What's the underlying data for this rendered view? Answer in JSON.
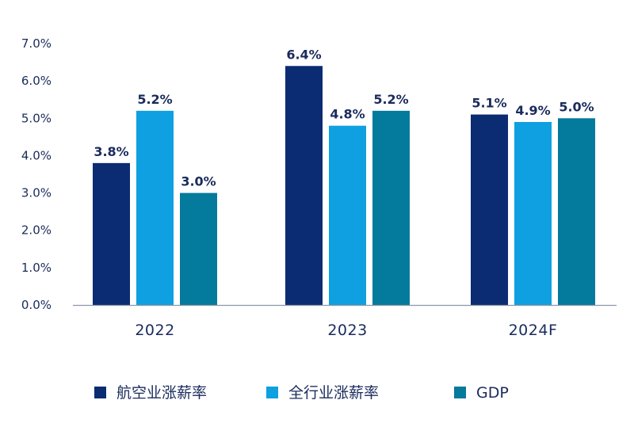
{
  "chart_data": {
    "type": "bar",
    "categories": [
      "2022",
      "2023",
      "2024F"
    ],
    "series": [
      {
        "name": "航空业涨薪率",
        "values": [
          3.8,
          6.4,
          5.1
        ],
        "labels": [
          "3.8%",
          "6.4%",
          "5.1%"
        ],
        "color": "#0b2b73"
      },
      {
        "name": "全行业涨薪率",
        "values": [
          5.2,
          4.8,
          4.9
        ],
        "labels": [
          "5.2%",
          "4.8%",
          "4.9%"
        ],
        "color": "#0ea0e0"
      },
      {
        "name": "GDP",
        "values": [
          3.0,
          5.2,
          5.0
        ],
        "labels": [
          "3.0%",
          "5.2%",
          "5.0%"
        ],
        "color": "#047a9c"
      }
    ],
    "y_ticks": [
      "0.0%",
      "1.0%",
      "2.0%",
      "3.0%",
      "4.0%",
      "5.0%",
      "6.0%",
      "7.0%"
    ],
    "ylim": [
      0,
      7
    ],
    "grid": false,
    "legend_position": "bottom",
    "title": "",
    "xlabel": "",
    "ylabel": ""
  }
}
